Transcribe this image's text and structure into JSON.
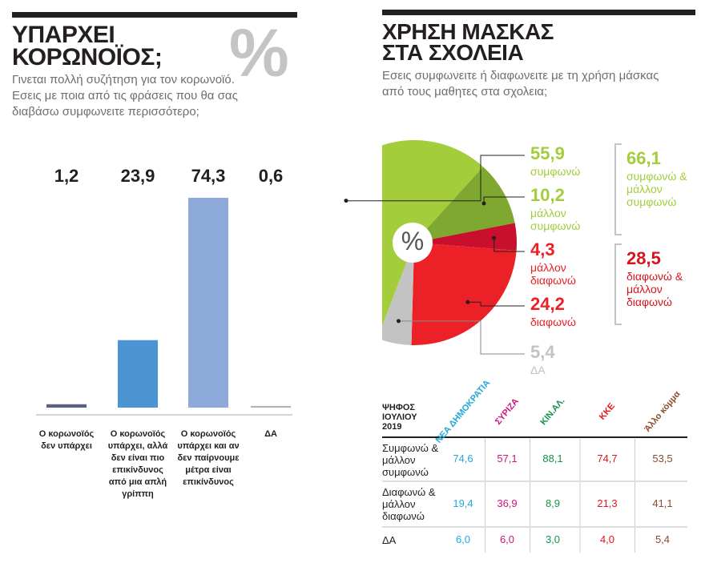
{
  "chart_data": [
    {
      "type": "bar",
      "title": "ΥΠΑΡΧΕΙ ΚΟΡΩΝΟΪΟΣ;",
      "badge": "%",
      "subtitle": "Γινεται πολλή συζήτηση για τον κορωνοϊό. Εσεις με ποια από τις φράσεις που θα σας διαβάσω συμφωνειτε περισσότερο;",
      "categories": [
        "Ο κορωνοϊός δεν υπάρχει",
        "Ο κορωνοϊός υπάρχει, αλλά δεν είναι πιο επικίνδυνος από μια απλή γρίππη",
        "Ο κορωνοϊός υπάρχει και αν δεν παίρνουμε μέτρα είναι επικίνδυνος",
        "ΔΑ"
      ],
      "values": [
        1.2,
        23.9,
        74.3,
        0.6
      ],
      "value_labels": [
        "1,2",
        "23,9",
        "74,3",
        "0,6"
      ],
      "colors": [
        "#56647f",
        "#4c95d4",
        "#8eaadb",
        "#b4b4b4"
      ]
    },
    {
      "type": "pie",
      "title": "ΧΡΗΣΗ ΜΑΣΚΑΣ ΣΤΑ ΣΧΟΛΕΙΑ",
      "center_label": "%",
      "subtitle": "Εσεις συμφωνειτε ή διαφωνειτε με τη χρήση μάσκας από τους μαθητες στα σχολεια;",
      "categories": [
        "συμφωνώ",
        "μάλλον συμφωνώ",
        "μάλλον διαφωνώ",
        "διαφωνώ",
        "ΔΑ"
      ],
      "values": [
        55.9,
        10.2,
        4.3,
        24.2,
        5.4
      ],
      "value_labels": [
        "55,9",
        "10,2",
        "4,3",
        "24,2",
        "5,4"
      ],
      "colors": [
        "#a3cd3b",
        "#7ea82f",
        "#c8102e",
        "#ec2027",
        "#c3c3c3"
      ],
      "groups": [
        {
          "value": 66.1,
          "value_label": "66,1",
          "label": "συμφωνώ & μάλλον συμφωνώ",
          "color": "#a3cd3b"
        },
        {
          "value": 28.5,
          "value_label": "28,5",
          "label": "διαφωνώ & μάλλον διαφωνώ",
          "color": "#d7141c"
        }
      ]
    }
  ],
  "table": {
    "title": "ΨΗΦΟΣ ΙΟΥΛΙΟΥ 2019",
    "columns": [
      "ΝΕΑ ΔΗΜΟΚΡΑΤΙΑ",
      "ΣΥΡΙΖΑ",
      "ΚΙΝ.ΑΛ.",
      "ΚΚΕ",
      "Άλλο κόμμα"
    ],
    "column_colors": [
      "#22a9d8",
      "#d1127f",
      "#16924a",
      "#e3161f",
      "#8a4a2c"
    ],
    "rows": [
      {
        "label": "Συμφωνώ & μάλλον συμφωνώ",
        "cells": [
          "74,6",
          "57,1",
          "88,1",
          "74,7",
          "53,5"
        ]
      },
      {
        "label": "Διαφωνώ & μάλλον διαφωνώ",
        "cells": [
          "19,4",
          "36,9",
          "8,9",
          "21,3",
          "41,1"
        ]
      },
      {
        "label": "ΔΑ",
        "cells": [
          "6,0",
          "6,0",
          "3,0",
          "4,0",
          "5,4"
        ]
      }
    ]
  }
}
